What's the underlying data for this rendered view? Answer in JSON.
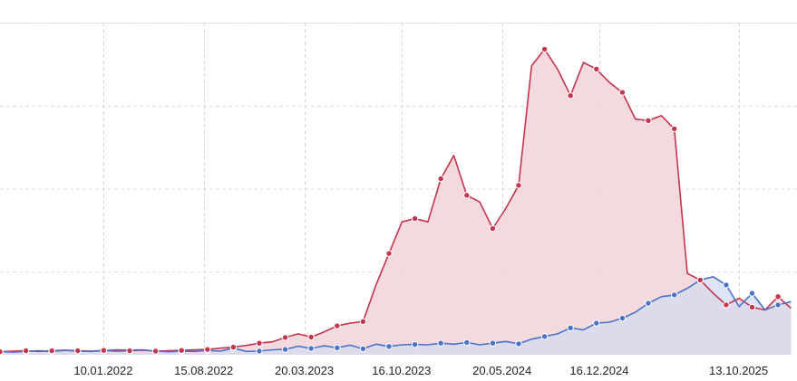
{
  "chart_data": {
    "type": "area",
    "x_start": "2021-06-01",
    "x_end": "2026-02-16",
    "x_tick_dates": [
      "2022-01-10",
      "2022-08-15",
      "2023-03-20",
      "2023-10-16",
      "2024-05-20",
      "2024-12-16",
      "2025-10-13"
    ],
    "x_tick_labels": [
      "10.01.2022",
      "15.08.2022",
      "20.03.2023",
      "16.10.2023",
      "20.05.2024",
      "16.12.2024",
      "13.10.2025"
    ],
    "ylim": [
      0,
      100
    ],
    "y_gridlines": [
      25,
      50,
      75,
      100
    ],
    "y_tick_labels_visible": false,
    "grid": true,
    "legend": "none",
    "colors": {
      "blue_line": "#4a72c6",
      "blue_fill": "#d3dbf0",
      "red_line": "#c4354e",
      "red_fill": "#f3d6db",
      "overlap_fill": "#cbc3dc"
    },
    "series": [
      {
        "color": "blue",
        "points": [
          [
            "2021-06-01",
            1
          ],
          [
            "2021-06-29",
            0.8
          ],
          [
            "2021-07-27",
            1
          ],
          [
            "2021-08-24",
            1.2
          ],
          [
            "2021-09-21",
            1
          ],
          [
            "2021-10-19",
            1.3
          ],
          [
            "2021-11-16",
            1.1
          ],
          [
            "2021-12-14",
            1
          ],
          [
            "2022-01-11",
            1.2
          ],
          [
            "2022-02-08",
            1.5
          ],
          [
            "2022-03-08",
            1.4
          ],
          [
            "2022-04-05",
            1.5
          ],
          [
            "2022-05-03",
            1.1
          ],
          [
            "2022-05-31",
            0.9
          ],
          [
            "2022-06-28",
            1.1
          ],
          [
            "2022-07-26",
            1
          ],
          [
            "2022-08-23",
            1.3
          ],
          [
            "2022-09-20",
            1.1
          ],
          [
            "2022-10-18",
            2
          ],
          [
            "2022-11-15",
            1
          ],
          [
            "2022-12-13",
            1.1
          ],
          [
            "2023-01-10",
            1.5
          ],
          [
            "2023-02-07",
            1.6
          ],
          [
            "2023-03-07",
            2.6
          ],
          [
            "2023-04-04",
            1.9
          ],
          [
            "2023-05-02",
            2.7
          ],
          [
            "2023-05-30",
            2.1
          ],
          [
            "2023-06-27",
            2.9
          ],
          [
            "2023-07-25",
            1.8
          ],
          [
            "2023-08-22",
            3.2
          ],
          [
            "2023-09-19",
            2.5
          ],
          [
            "2023-10-17",
            3
          ],
          [
            "2023-11-14",
            3.1
          ],
          [
            "2023-12-12",
            3
          ],
          [
            "2024-01-09",
            3.5
          ],
          [
            "2024-02-06",
            3.2
          ],
          [
            "2024-03-05",
            3.7
          ],
          [
            "2024-04-02",
            3
          ],
          [
            "2024-04-30",
            3.5
          ],
          [
            "2024-05-28",
            4
          ],
          [
            "2024-06-25",
            3.3
          ],
          [
            "2024-07-23",
            4.7
          ],
          [
            "2024-08-20",
            5.5
          ],
          [
            "2024-09-17",
            6.3
          ],
          [
            "2024-10-15",
            8.1
          ],
          [
            "2024-11-12",
            7.5
          ],
          [
            "2024-12-10",
            9.5
          ],
          [
            "2025-01-07",
            9.8
          ],
          [
            "2025-02-04",
            11
          ],
          [
            "2025-03-04",
            12.8
          ],
          [
            "2025-04-01",
            15.5
          ],
          [
            "2025-04-29",
            17.5
          ],
          [
            "2025-05-27",
            18
          ],
          [
            "2025-06-24",
            20
          ],
          [
            "2025-07-22",
            22.5
          ],
          [
            "2025-08-19",
            23.5
          ],
          [
            "2025-09-16",
            21
          ],
          [
            "2025-10-14",
            14.5
          ],
          [
            "2025-11-11",
            18.5
          ],
          [
            "2025-12-09",
            13.5
          ],
          [
            "2026-01-06",
            15
          ],
          [
            "2026-02-03",
            16
          ]
        ]
      },
      {
        "color": "red",
        "points": [
          [
            "2021-06-01",
            0.9
          ],
          [
            "2021-06-29",
            1.1
          ],
          [
            "2021-07-27",
            1.2
          ],
          [
            "2021-08-24",
            1
          ],
          [
            "2021-09-21",
            1.2
          ],
          [
            "2021-10-19",
            1.4
          ],
          [
            "2021-11-16",
            1.2
          ],
          [
            "2021-12-14",
            1.1
          ],
          [
            "2022-01-11",
            1.3
          ],
          [
            "2022-02-08",
            1.1
          ],
          [
            "2022-03-08",
            1.2
          ],
          [
            "2022-04-05",
            1.4
          ],
          [
            "2022-05-03",
            1.1
          ],
          [
            "2022-05-31",
            1.2
          ],
          [
            "2022-06-28",
            1.3
          ],
          [
            "2022-07-26",
            1.5
          ],
          [
            "2022-08-23",
            1.6
          ],
          [
            "2022-09-20",
            2
          ],
          [
            "2022-10-18",
            2.3
          ],
          [
            "2022-11-15",
            2.8
          ],
          [
            "2022-12-13",
            3.5
          ],
          [
            "2023-01-10",
            3.9
          ],
          [
            "2023-02-07",
            5.2
          ],
          [
            "2023-03-07",
            6.3
          ],
          [
            "2023-04-04",
            5.3
          ],
          [
            "2023-05-02",
            6.9
          ],
          [
            "2023-05-30",
            8.7
          ],
          [
            "2023-06-27",
            9.5
          ],
          [
            "2023-07-25",
            10
          ],
          [
            "2023-08-22",
            21
          ],
          [
            "2023-09-19",
            30.5
          ],
          [
            "2023-10-17",
            40
          ],
          [
            "2023-11-14",
            41
          ],
          [
            "2023-12-12",
            40
          ],
          [
            "2024-01-09",
            53
          ],
          [
            "2024-02-06",
            60
          ],
          [
            "2024-03-05",
            48
          ],
          [
            "2024-04-02",
            46
          ],
          [
            "2024-04-30",
            38
          ],
          [
            "2024-05-28",
            44
          ],
          [
            "2024-06-25",
            51
          ],
          [
            "2024-07-23",
            87
          ],
          [
            "2024-08-20",
            92
          ],
          [
            "2024-09-17",
            86
          ],
          [
            "2024-10-15",
            78
          ],
          [
            "2024-11-12",
            88
          ],
          [
            "2024-12-10",
            86
          ],
          [
            "2025-01-07",
            82
          ],
          [
            "2025-02-04",
            79
          ],
          [
            "2025-03-04",
            71
          ],
          [
            "2025-04-01",
            70.5
          ],
          [
            "2025-04-29",
            72
          ],
          [
            "2025-05-27",
            68
          ],
          [
            "2025-06-24",
            24.5
          ],
          [
            "2025-07-22",
            22.5
          ],
          [
            "2025-08-19",
            18.5
          ],
          [
            "2025-09-16",
            15
          ],
          [
            "2025-10-14",
            17
          ],
          [
            "2025-11-11",
            14.3
          ],
          [
            "2025-12-09",
            13.5
          ],
          [
            "2026-01-06",
            17.5
          ],
          [
            "2026-02-03",
            14
          ]
        ]
      }
    ]
  }
}
